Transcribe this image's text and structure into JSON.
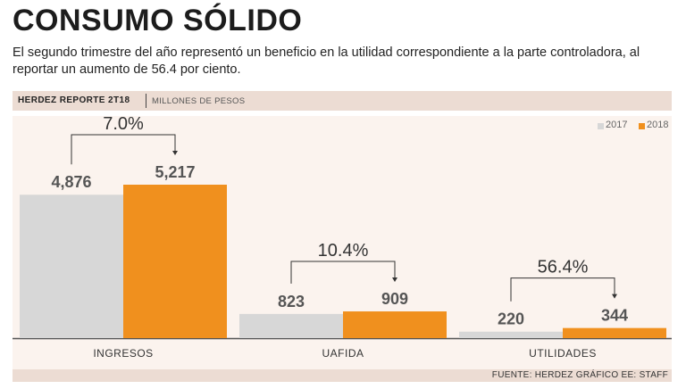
{
  "header": {
    "title": "CONSUMO SÓLIDO",
    "subtitle": "El segundo trimestre del año representó un beneficio en la utilidad correspondiente a la parte controladora, al reportar un aumento de 56.4 por ciento."
  },
  "band": {
    "label": "HERDEZ REPORTE 2T18",
    "units": "MILLONES DE PESOS"
  },
  "footer": {
    "source": "FUENTE: HERDEZ GRÁFICO EE: STAFF"
  },
  "colors": {
    "y2017": "#d7d7d7",
    "y2018": "#f0901e",
    "bg": "#fbf3ee",
    "band": "#ecdcd3"
  },
  "chart_data": {
    "type": "bar",
    "title": "HERDEZ REPORTE 2T18",
    "ylabel": "MILLONES DE PESOS",
    "categories": [
      "INGRESOS",
      "UAFIDA",
      "UTILIDADES"
    ],
    "series": [
      {
        "name": "2017",
        "values": [
          4876,
          823,
          220
        ],
        "labels": [
          "4,876",
          "823",
          "220"
        ]
      },
      {
        "name": "2018",
        "values": [
          5217,
          909,
          344
        ],
        "labels": [
          "5,217",
          "909",
          "344"
        ]
      }
    ],
    "changes": [
      "7.0%",
      "10.4%",
      "56.4%"
    ],
    "legend": [
      "2017",
      "2018"
    ]
  }
}
